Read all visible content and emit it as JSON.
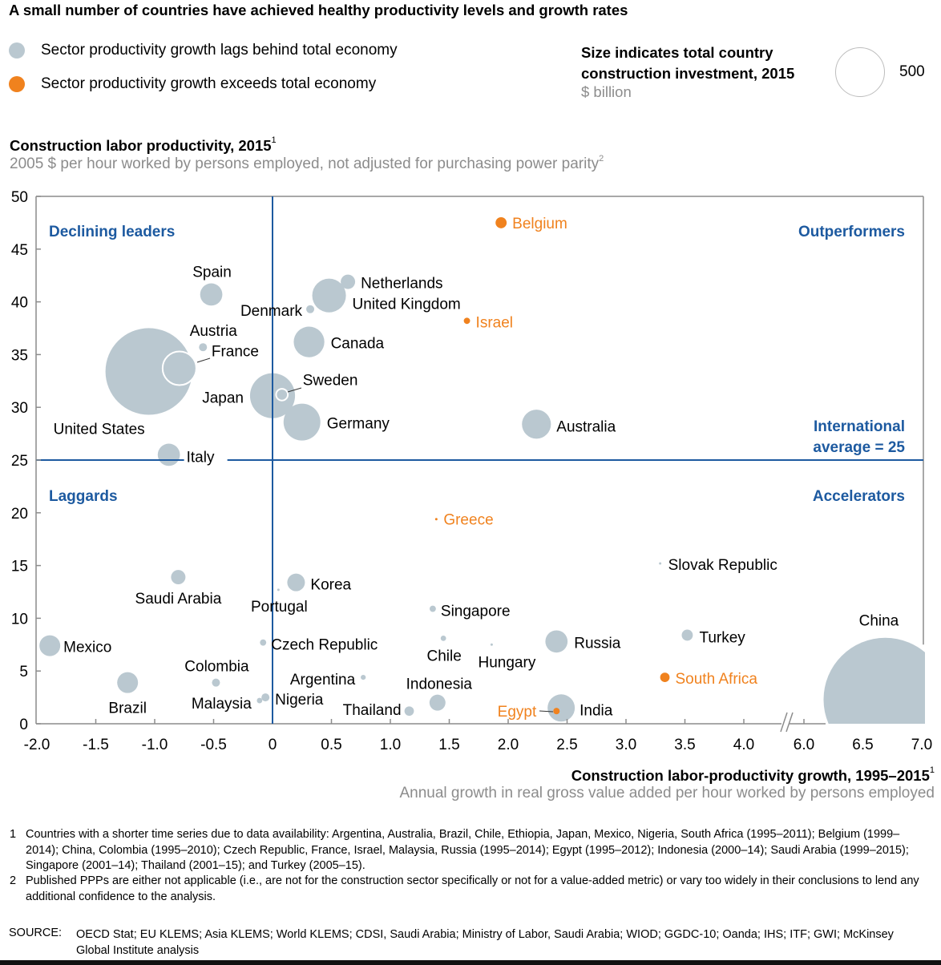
{
  "title": "A small number of countries have achieved healthy productivity levels and growth rates",
  "legend": {
    "items": [
      {
        "label": "Sector productivity growth lags behind total economy",
        "color": "#bac8d0"
      },
      {
        "label": "Sector productivity growth exceeds total economy",
        "color": "#f0821e"
      }
    ],
    "size_title": "Size indicates total country construction investment, 2015",
    "size_unit": "$ billion",
    "size_value": "500"
  },
  "colors": {
    "lag": "#bac8d0",
    "exceed": "#f0821e",
    "axis_blue": "#1d5aa0",
    "quadrant_text": "#1d5aa0",
    "axis_gray": "#8c8c8c"
  },
  "y_axis": {
    "title": "Construction labor productivity, 2015",
    "title_sup": "1",
    "subtitle": "2005 $ per hour worked by persons employed, not adjusted for purchasing power parity",
    "subtitle_sup": "2"
  },
  "x_axis": {
    "title": "Construction labor-productivity growth, 1995–2015",
    "title_sup": "1",
    "subtitle": "Annual growth in real gross value added per hour worked by persons employed"
  },
  "footnotes": [
    {
      "num": "1",
      "text": "Countries with a shorter time series due to data availability: Argentina, Australia, Brazil, Chile, Ethiopia, Japan, Mexico, Nigeria, South Africa (1995–2011); Belgium (1999–2014); China, Colombia (1995–2010); Czech Republic, France, Israel, Malaysia, Russia (1995–2014); Egypt (1995–2012); Indonesia (2000–14); Saudi Arabia (1999–2015); Singapore (2001–14); Thailand (2001–15); and Turkey (2005–15)."
    },
    {
      "num": "2",
      "text": "Published PPPs are either not applicable (i.e., are not for the construction sector specifically or not for a value-added metric) or vary too widely in their conclusions to lend any additional confidence to the analysis."
    }
  ],
  "source": {
    "label": "SOURCE:",
    "text": "OECD Stat; EU KLEMS; Asia KLEMS; World KLEMS; CDSI, Saudi Arabia; Ministry of Labor, Saudi Arabia; WIOD; GGDC-10; Oanda;  IHS; ITF; GWI;  McKinsey Global Institute analysis"
  },
  "chart_data": {
    "type": "scatter",
    "title": "A small number of countries have achieved healthy productivity levels and growth rates",
    "xlabel": "Construction labor-productivity growth, 1995–2015",
    "ylabel": "Construction labor productivity, 2015",
    "xlim": [
      -2.0,
      7.0
    ],
    "x_break": [
      4.0,
      6.0
    ],
    "ylim": [
      0,
      50
    ],
    "x_ticks": [
      "-2.0",
      "-1.5",
      "-1.0",
      "-0.5",
      "0",
      "0.5",
      "1.0",
      "1.5",
      "2.0",
      "2.5",
      "3.0",
      "3.5",
      "4.0",
      "6.0",
      "6.5",
      "7.0"
    ],
    "x_tick_values": [
      -2.0,
      -1.5,
      -1.0,
      -0.5,
      0,
      0.5,
      1.0,
      1.5,
      2.0,
      2.5,
      3.0,
      3.5,
      4.0,
      6.0,
      6.5,
      7.0
    ],
    "y_ticks": [
      "0",
      "5",
      "10",
      "15",
      "20",
      "25",
      "30",
      "35",
      "40",
      "45",
      "50"
    ],
    "y_tick_values": [
      0,
      5,
      10,
      15,
      20,
      25,
      30,
      35,
      40,
      45,
      50
    ],
    "grid": false,
    "reference_lines": {
      "x": 0,
      "y": 25
    },
    "reference_label": "International average = 25",
    "reference_label_lines": [
      "International",
      "average = 25"
    ],
    "quadrants": [
      {
        "label": "Declining leaders",
        "position": "top-left"
      },
      {
        "label": "Outperformers",
        "position": "top-right"
      },
      {
        "label": "Laggards",
        "position": "bottom-left"
      },
      {
        "label": "Accelerators",
        "position": "bottom-right"
      }
    ],
    "size_legend": {
      "label": "Size indicates total country construction investment, 2015 ($ billion)",
      "value": 500
    },
    "points": [
      {
        "name": "United States",
        "x": -1.05,
        "y": 33.4,
        "size": 1520,
        "group": "lag"
      },
      {
        "name": "France",
        "x": -0.79,
        "y": 33.7,
        "size": 230,
        "group": "lag"
      },
      {
        "name": "Austria",
        "x": -0.59,
        "y": 35.7,
        "size": 13,
        "group": "lag"
      },
      {
        "name": "Spain",
        "x": -0.52,
        "y": 40.7,
        "size": 100,
        "group": "lag"
      },
      {
        "name": "Italy",
        "x": -0.88,
        "y": 25.5,
        "size": 100,
        "group": "lag"
      },
      {
        "name": "Japan",
        "x": 0.0,
        "y": 31.1,
        "size": 410,
        "group": "lag"
      },
      {
        "name": "Sweden",
        "x": 0.08,
        "y": 31.2,
        "size": 28,
        "group": "lag"
      },
      {
        "name": "Germany",
        "x": 0.25,
        "y": 28.6,
        "size": 275,
        "group": "lag"
      },
      {
        "name": "Canada",
        "x": 0.31,
        "y": 36.2,
        "size": 190,
        "group": "lag"
      },
      {
        "name": "Denmark",
        "x": 0.32,
        "y": 39.3,
        "size": 13,
        "group": "lag"
      },
      {
        "name": "United Kingdom",
        "x": 0.48,
        "y": 40.6,
        "size": 230,
        "group": "lag"
      },
      {
        "name": "Netherlands",
        "x": 0.64,
        "y": 41.9,
        "size": 42,
        "group": "lag"
      },
      {
        "name": "Belgium",
        "x": 1.94,
        "y": 47.5,
        "size": 25,
        "group": "exceed"
      },
      {
        "name": "Israel",
        "x": 1.65,
        "y": 38.2,
        "size": 8,
        "group": "exceed"
      },
      {
        "name": "Australia",
        "x": 2.24,
        "y": 28.4,
        "size": 170,
        "group": "lag"
      },
      {
        "name": "Greece",
        "x": 1.39,
        "y": 19.4,
        "size": 1,
        "group": "exceed"
      },
      {
        "name": "Slovak Republic",
        "x": 3.29,
        "y": 15.2,
        "size": 1,
        "group": "lag"
      },
      {
        "name": "Saudi Arabia",
        "x": -0.8,
        "y": 13.9,
        "size": 42,
        "group": "lag"
      },
      {
        "name": "Korea",
        "x": 0.2,
        "y": 13.4,
        "size": 63,
        "group": "lag"
      },
      {
        "name": "Portugal",
        "x": 0.05,
        "y": 12.7,
        "size": 1,
        "group": "lag"
      },
      {
        "name": "Singapore",
        "x": 1.36,
        "y": 10.9,
        "size": 8,
        "group": "lag"
      },
      {
        "name": "Mexico",
        "x": -1.89,
        "y": 7.4,
        "size": 88,
        "group": "lag"
      },
      {
        "name": "Czech Republic",
        "x": -0.08,
        "y": 7.7,
        "size": 8,
        "group": "lag"
      },
      {
        "name": "Chile",
        "x": 1.45,
        "y": 8.1,
        "size": 6,
        "group": "lag"
      },
      {
        "name": "Hungary",
        "x": 1.86,
        "y": 7.5,
        "size": 1,
        "group": "lag"
      },
      {
        "name": "Russia",
        "x": 2.41,
        "y": 7.8,
        "size": 100,
        "group": "lag"
      },
      {
        "name": "Turkey",
        "x": 3.52,
        "y": 8.4,
        "size": 25,
        "group": "lag"
      },
      {
        "name": "South Africa",
        "x": 3.33,
        "y": 4.4,
        "size": 18,
        "group": "exceed"
      },
      {
        "name": "Argentina",
        "x": 0.77,
        "y": 4.4,
        "size": 5,
        "group": "lag"
      },
      {
        "name": "Colombia",
        "x": -0.48,
        "y": 3.9,
        "size": 13,
        "group": "lag"
      },
      {
        "name": "Brazil",
        "x": -1.23,
        "y": 3.9,
        "size": 88,
        "group": "lag"
      },
      {
        "name": "Malaysia",
        "x": -0.11,
        "y": 2.2,
        "size": 6,
        "group": "lag"
      },
      {
        "name": "Nigeria",
        "x": -0.06,
        "y": 2.5,
        "size": 13,
        "group": "lag"
      },
      {
        "name": "Indonesia",
        "x": 1.4,
        "y": 2.0,
        "size": 52,
        "group": "lag"
      },
      {
        "name": "Thailand",
        "x": 1.16,
        "y": 1.2,
        "size": 18,
        "group": "lag"
      },
      {
        "name": "India",
        "x": 2.45,
        "y": 1.5,
        "size": 150,
        "group": "lag"
      },
      {
        "name": "Egypt",
        "x": 2.41,
        "y": 1.2,
        "size": 8,
        "group": "exceed"
      },
      {
        "name": "China",
        "x": 6.69,
        "y": 2.3,
        "size": 3080,
        "group": "lag"
      }
    ]
  }
}
